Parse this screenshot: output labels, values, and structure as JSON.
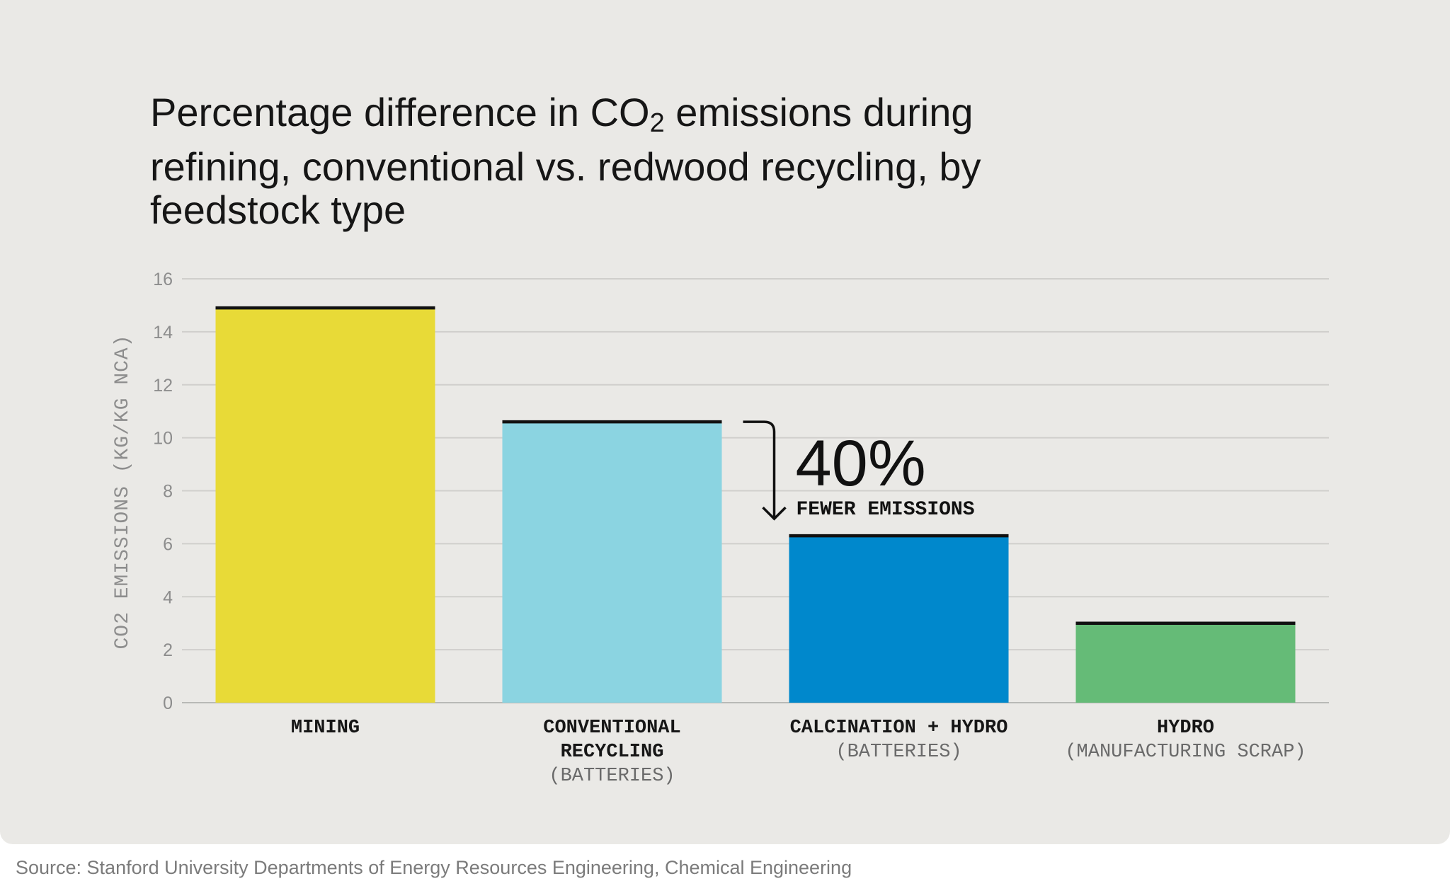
{
  "chart_data": {
    "type": "bar",
    "title_prefix": "Percentage difference in CO",
    "title_subscript": "2",
    "title_suffix": " emissions during refining, conventional vs. redwood recycling, by feedstock type",
    "ylabel": "CO2 EMISSIONS (KG/KG NCA)",
    "xlabel": "",
    "ylim": [
      0,
      16
    ],
    "yticks": [
      0,
      2,
      4,
      6,
      8,
      10,
      12,
      14,
      16
    ],
    "grid": true,
    "categories": [
      {
        "lines": [
          "MINING"
        ],
        "sub": ""
      },
      {
        "lines": [
          "CONVENTIONAL",
          "RECYCLING"
        ],
        "sub": "(BATTERIES)"
      },
      {
        "lines": [
          "CALCINATION + HYDRO"
        ],
        "sub": "(BATTERIES)"
      },
      {
        "lines": [
          "HYDRO"
        ],
        "sub": "(MANUFACTURING SCRAP)"
      }
    ],
    "values": [
      14.9,
      10.6,
      6.3,
      3.0
    ],
    "colors": [
      "#e8da37",
      "#8bd4e1",
      "#0088cc",
      "#65bb77"
    ],
    "annotation": {
      "value": "40%",
      "label": "FEWER EMISSIONS",
      "from_index": 1,
      "to_index": 2
    }
  },
  "source": "Source: Stanford University Departments of Energy Resources Engineering, Chemical Engineering"
}
